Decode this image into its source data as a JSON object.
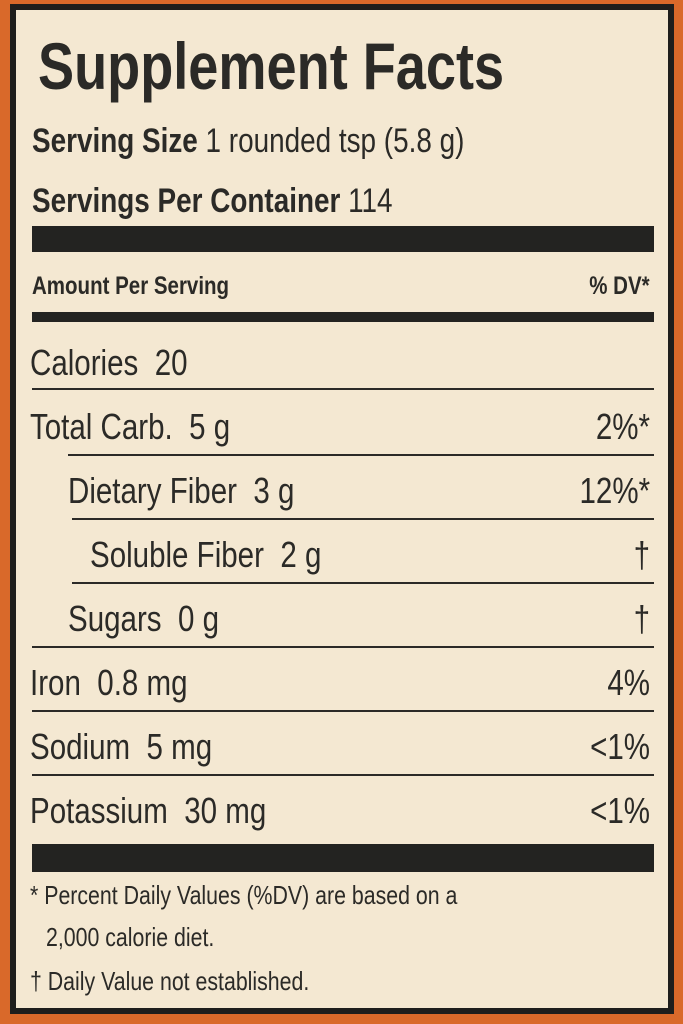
{
  "title": "Supplement Facts",
  "serving_size": {
    "label": "Serving Size",
    "value": "1 rounded tsp (5.8 g)"
  },
  "servings_per_container": {
    "label": "Servings Per Container",
    "value": "114"
  },
  "header": {
    "amount_label": "Amount Per Serving",
    "dv_label": "% DV*"
  },
  "rows": [
    {
      "name": "Calories",
      "amount": "20",
      "dv": ""
    },
    {
      "name": "Total Carb.",
      "amount": "5 g",
      "dv": "2%*"
    },
    {
      "name": "Dietary Fiber",
      "amount": "3 g",
      "dv": "12%*"
    },
    {
      "name": "Soluble Fiber",
      "amount": "2 g",
      "dv": "†"
    },
    {
      "name": "Sugars",
      "amount": "0 g",
      "dv": "†"
    },
    {
      "name": "Iron",
      "amount": "0.8 mg",
      "dv": "4%"
    },
    {
      "name": "Sodium",
      "amount": "5 mg",
      "dv": "<1%"
    },
    {
      "name": "Potassium",
      "amount": "30 mg",
      "dv": "<1%"
    }
  ],
  "footnotes": {
    "percent_dv_line1": "* Percent Daily Values (%DV) are based on a",
    "percent_dv_line2": "2,000 calorie diet.",
    "dagger": "† Daily Value not established."
  },
  "colors": {
    "background": "#d9692a",
    "label": "#f4e8d2",
    "ink": "#2b2a27"
  }
}
